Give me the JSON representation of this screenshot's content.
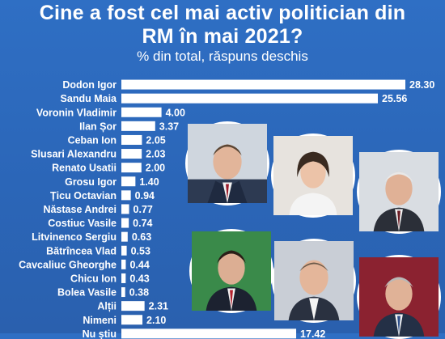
{
  "header": {
    "title_line1": "Cine a fost  cel mai activ politician din",
    "title_line2": "RM în mai 2021?",
    "subtitle": "% din total, răspuns deschis"
  },
  "colors": {
    "background": "#2b66b8",
    "bar": "#ffffff",
    "text": "#ffffff"
  },
  "photos": [
    {
      "name": "portrait-1-icon"
    },
    {
      "name": "portrait-2-icon"
    },
    {
      "name": "portrait-3-icon"
    },
    {
      "name": "portrait-4-icon"
    },
    {
      "name": "portrait-5-icon"
    },
    {
      "name": "portrait-6-icon"
    }
  ],
  "chart_data": {
    "type": "bar",
    "orientation": "horizontal",
    "title": "Cine a fost  cel mai activ politician din RM în mai 2021?",
    "subtitle": "% din total, răspuns deschis",
    "categories": [
      "Dodon Igor",
      "Sandu Maia",
      "Voronin Vladimir",
      "Ilan Șor",
      "Ceban Ion",
      "Slusari Alexandru",
      "Renato Usatii",
      "Grosu Igor",
      "Țicu Octavian",
      "Năstase Andrei",
      "Costiuc Vasile",
      "Litvinenco Sergiu",
      "Bătrîncea Vlad",
      "Cavcaliuc Gheorghe",
      "Chicu Ion",
      "Bolea Vasile",
      "Alții",
      "Nimeni",
      "Nu știu"
    ],
    "values": [
      28.3,
      25.56,
      4.0,
      3.37,
      2.05,
      2.03,
      2.0,
      1.4,
      0.94,
      0.77,
      0.74,
      0.63,
      0.53,
      0.44,
      0.43,
      0.38,
      2.31,
      2.1,
      17.42
    ],
    "value_labels": [
      "28.30",
      "25.56",
      "4.00",
      "3.37",
      "2.05",
      "2.03",
      "2.00",
      "1.40",
      "0.94",
      "0.77",
      "0.74",
      "0.63",
      "0.53",
      "0.44",
      "0.43",
      "0.38",
      "2.31",
      "2.10",
      "17.42"
    ],
    "xlim": [
      0,
      28.3
    ],
    "grid": false,
    "legend": "none"
  }
}
